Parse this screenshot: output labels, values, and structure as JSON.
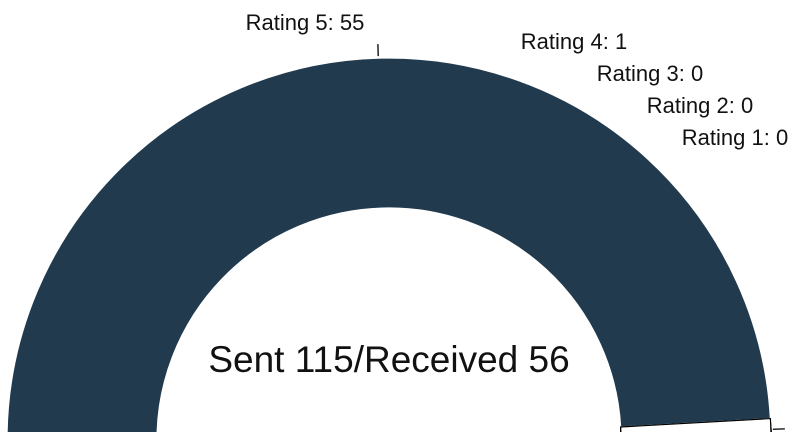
{
  "chart_data": {
    "type": "half-donut",
    "center_text": "Sent 115/Received 56",
    "categories": [
      "Rating 5",
      "Rating 4",
      "Rating 3",
      "Rating 2",
      "Rating 1"
    ],
    "values": [
      55,
      1,
      0,
      0,
      0
    ],
    "value_labels": [
      "Rating 5: 55",
      "Rating 4: 1",
      "Rating 3: 0",
      "Rating 2: 0",
      "Rating 1: 0"
    ],
    "colors": [
      "#213a4e",
      "#ffffff",
      "#ffffff",
      "#ffffff",
      "#ffffff"
    ]
  }
}
